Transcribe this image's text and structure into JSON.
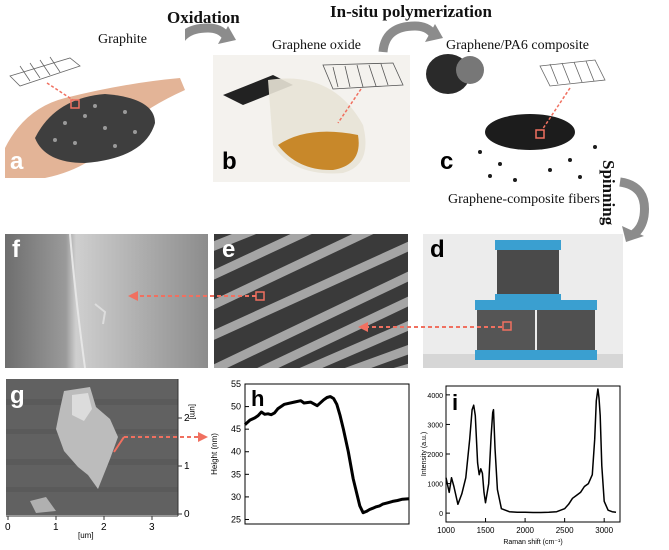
{
  "titles": {
    "oxidation": "Oxidation",
    "polymerization": "In-situ polymerization",
    "spinning": "Spinning"
  },
  "captions": {
    "graphite": "Graphite",
    "graphene_oxide": "Graphene oxide",
    "composite": "Graphene/PA6 composite",
    "fibers": "Graphene-composite fibers"
  },
  "panel_labels": {
    "a": "a",
    "b": "b",
    "c": "c",
    "d": "d",
    "e": "e",
    "f": "f",
    "g": "g",
    "h": "h",
    "i": "i"
  },
  "colors": {
    "arrow_dashed": "#f07060",
    "curved_arrow": "#8c8c8c",
    "spool_blue": "#3a9fd0",
    "trace": "#000000"
  },
  "afm": {
    "x_ticks": [
      "0",
      "1",
      "2",
      "3"
    ],
    "x_unit": "[um]",
    "y_ticks": [
      "0",
      "1",
      "2"
    ],
    "y_unit": "[um]"
  },
  "chart_data": [
    {
      "type": "line",
      "panel": "h",
      "title": "",
      "xlabel": "",
      "ylabel": "Height (nm)",
      "ylim": [
        24,
        55
      ],
      "yticks": [
        "25",
        "30",
        "35",
        "40",
        "45",
        "50",
        "55"
      ],
      "xticks": [],
      "series": [
        {
          "x": [
            0,
            3,
            6,
            8,
            10,
            12,
            14,
            16,
            18,
            20,
            24,
            30,
            34,
            36,
            40,
            44,
            48,
            50,
            52,
            54,
            56,
            58,
            60,
            63,
            66,
            70,
            72,
            74,
            76,
            78,
            80,
            82,
            84,
            87,
            90,
            93,
            96,
            100
          ],
          "y": [
            46,
            47,
            47.5,
            48,
            48.8,
            48.3,
            48.4,
            48.2,
            48.6,
            49.5,
            50.5,
            51,
            51.3,
            50.8,
            51,
            50.2,
            51.5,
            52,
            52.2,
            51.8,
            50.5,
            48,
            45,
            40,
            34,
            28,
            26.5,
            26.8,
            27.2,
            27.5,
            27.8,
            28,
            28.4,
            28.7,
            29,
            29.2,
            29.5,
            29.6
          ]
        }
      ]
    },
    {
      "type": "line",
      "panel": "i",
      "title": "",
      "xlabel": "Raman shift (cm⁻¹)",
      "ylabel": "Intensity (a.u.)",
      "xlim": [
        1000,
        3200
      ],
      "ylim": [
        -300,
        4300
      ],
      "xticks": [
        "1000",
        "1500",
        "2000",
        "2500",
        "3000"
      ],
      "yticks": [
        "0",
        "1000",
        "2000",
        "3000",
        "4000"
      ],
      "series": [
        {
          "x": [
            1000,
            1040,
            1070,
            1100,
            1150,
            1200,
            1250,
            1300,
            1330,
            1350,
            1370,
            1400,
            1420,
            1440,
            1460,
            1480,
            1500,
            1540,
            1570,
            1590,
            1600,
            1620,
            1650,
            1700,
            1800,
            1900,
            2000,
            2100,
            2200,
            2300,
            2400,
            2500,
            2550,
            2600,
            2650,
            2700,
            2750,
            2800,
            2850,
            2880,
            2900,
            2920,
            2935,
            2950,
            2970,
            3000,
            3050,
            3100,
            3150
          ],
          "y": [
            1200,
            700,
            1200,
            900,
            300,
            650,
            1200,
            2500,
            3500,
            3650,
            3300,
            1700,
            1300,
            1500,
            1350,
            700,
            350,
            1000,
            2600,
            3400,
            3500,
            2200,
            800,
            150,
            50,
            30,
            30,
            20,
            20,
            30,
            50,
            150,
            300,
            500,
            600,
            700,
            900,
            1000,
            1300,
            2500,
            3800,
            4200,
            3900,
            3300,
            1600,
            400,
            100,
            50,
            30
          ]
        }
      ]
    }
  ]
}
